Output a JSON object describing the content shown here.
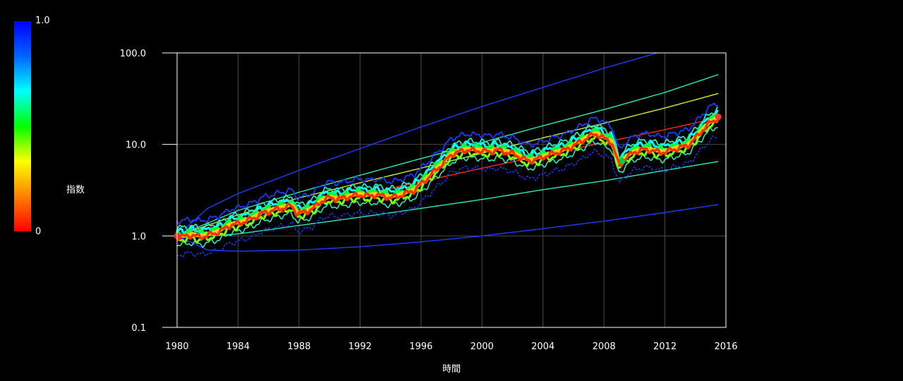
{
  "chart_data": {
    "type": "scatter",
    "title": "",
    "xlabel": "時間",
    "ylabel": "",
    "xlim": [
      1980,
      2016
    ],
    "ylim": [
      0.1,
      100.0
    ],
    "y_scale": "log",
    "grid": true,
    "x_ticks": [
      "1980",
      "1984",
      "1988",
      "1992",
      "1996",
      "2000",
      "2004",
      "2008",
      "2012",
      "2016"
    ],
    "y_ticks": [
      "0.1",
      "1.0",
      "10.0",
      "100.0"
    ],
    "colorbar": {
      "label": "指数",
      "min_label": "0",
      "max_label": "1.0",
      "colors": [
        "#ff0000",
        "#ff8000",
        "#ffff00",
        "#00ff00",
        "#00ffff",
        "#0064ff",
        "#0000ff"
      ]
    },
    "price_series": {
      "name": "",
      "x": [
        1980.0,
        1980.5,
        1981.0,
        1981.5,
        1982.0,
        1982.5,
        1983.0,
        1983.5,
        1984.0,
        1984.5,
        1985.0,
        1985.5,
        1986.0,
        1986.5,
        1987.0,
        1987.5,
        1987.9,
        1988.5,
        1989.0,
        1989.5,
        1990.0,
        1990.5,
        1991.0,
        1991.5,
        1992.0,
        1992.5,
        1993.0,
        1993.5,
        1994.0,
        1994.5,
        1995.0,
        1995.5,
        1996.0,
        1996.5,
        1997.0,
        1997.5,
        1998.0,
        1998.5,
        1999.0,
        1999.5,
        2000.0,
        2000.5,
        2001.0,
        2001.5,
        2002.0,
        2002.5,
        2003.0,
        2003.5,
        2004.0,
        2004.5,
        2005.0,
        2005.5,
        2006.0,
        2006.5,
        2007.0,
        2007.5,
        2008.0,
        2008.5,
        2009.0,
        2009.5,
        2010.0,
        2010.5,
        2011.0,
        2011.5,
        2012.0,
        2012.5,
        2013.0,
        2013.5,
        2014.0,
        2014.5,
        2015.0,
        2015.5
      ],
      "y": [
        1.0,
        1.02,
        1.05,
        1.0,
        1.05,
        1.1,
        1.2,
        1.35,
        1.4,
        1.5,
        1.6,
        1.8,
        1.9,
        2.0,
        2.1,
        2.2,
        1.8,
        1.9,
        2.1,
        2.5,
        2.7,
        2.6,
        2.7,
        2.8,
        2.9,
        2.8,
        2.9,
        2.8,
        2.7,
        2.8,
        3.0,
        3.2,
        3.8,
        4.5,
        5.5,
        6.5,
        8.0,
        8.5,
        9.0,
        8.8,
        8.8,
        8.5,
        9.0,
        8.5,
        8.2,
        7.5,
        6.8,
        7.0,
        7.5,
        8.0,
        8.5,
        9.0,
        10.0,
        11.0,
        12.5,
        13.5,
        12.0,
        11.0,
        6.0,
        7.5,
        8.5,
        9.0,
        9.0,
        8.5,
        8.5,
        9.0,
        9.5,
        10.0,
        12.0,
        15.0,
        18.0,
        20.0
      ],
      "x_ref": [
        1980.0,
        1987.9,
        1998.6,
        2008.0,
        2009.2,
        2015.5
      ]
    },
    "curves": [
      {
        "name": "",
        "color": "#1e3cff",
        "x": [
          1980,
          1982,
          1984,
          1988,
          1992,
          1996,
          2000,
          2004,
          2008,
          2011.5
        ],
        "y": [
          1.0,
          2.0,
          2.9,
          5.2,
          9.0,
          15.5,
          26.0,
          42.0,
          68.0,
          100.0
        ]
      },
      {
        "name": "",
        "color": "#2ee8b8",
        "x": [
          1980,
          1984,
          1988,
          1992,
          1996,
          2000,
          2004,
          2008,
          2012,
          2015.5
        ],
        "y": [
          1.0,
          1.9,
          3.0,
          4.6,
          7.0,
          10.5,
          16.0,
          24.0,
          37.0,
          58.0
        ]
      },
      {
        "name": "",
        "color": "#c8f040",
        "x": [
          1980,
          1984,
          1988,
          1992,
          1996,
          2000,
          2004,
          2008,
          2012,
          2015.5
        ],
        "y": [
          1.0,
          1.7,
          2.6,
          3.8,
          5.5,
          8.0,
          11.8,
          17.0,
          25.0,
          36.0
        ]
      },
      {
        "name": "",
        "color": "#ff2a1a",
        "x": [
          1980,
          1984,
          1988,
          1992,
          1996,
          2000,
          2004,
          2008,
          2012,
          2015.5
        ],
        "y": [
          1.0,
          1.45,
          2.0,
          2.8,
          3.9,
          5.5,
          7.6,
          10.5,
          14.5,
          19.5
        ]
      },
      {
        "name": "",
        "color": "#2ee8b8",
        "x": [
          1980,
          1984,
          1988,
          1992,
          1996,
          2000,
          2004,
          2008,
          2012,
          2015.5
        ],
        "y": [
          0.95,
          1.05,
          1.3,
          1.6,
          2.0,
          2.5,
          3.2,
          4.0,
          5.2,
          6.5
        ]
      },
      {
        "name": "",
        "color": "#1e3cff",
        "x": [
          1980,
          1982,
          1984,
          1988,
          1992,
          1996,
          2000,
          2004,
          2008,
          2012,
          2015.5
        ],
        "y": [
          1.0,
          0.7,
          0.68,
          0.7,
          0.76,
          0.86,
          1.0,
          1.2,
          1.45,
          1.8,
          2.2
        ]
      }
    ]
  }
}
